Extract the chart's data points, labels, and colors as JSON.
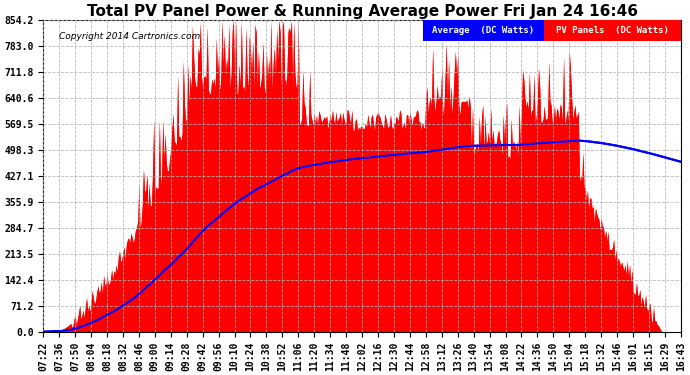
{
  "title": "Total PV Panel Power & Running Average Power Fri Jan 24 16:46",
  "copyright": "Copyright 2014 Cartronics.com",
  "legend_avg": "Average  (DC Watts)",
  "legend_pv": "PV Panels  (DC Watts)",
  "ylabel_values": [
    0.0,
    71.2,
    142.4,
    213.5,
    284.7,
    355.9,
    427.1,
    498.3,
    569.5,
    640.6,
    711.8,
    783.0,
    854.2
  ],
  "ymax": 854.2,
  "ymin": 0.0,
  "pv_color": "#ff0000",
  "avg_color": "#0000ff",
  "bg_color": "#ffffff",
  "grid_color": "#b0b0b0",
  "title_fontsize": 11,
  "tick_fontsize": 7,
  "x_tick_labels": [
    "07:22",
    "07:36",
    "07:50",
    "08:04",
    "08:18",
    "08:32",
    "08:46",
    "09:00",
    "09:14",
    "09:28",
    "09:42",
    "09:56",
    "10:10",
    "10:24",
    "10:38",
    "10:52",
    "11:06",
    "11:20",
    "11:34",
    "11:48",
    "12:02",
    "12:16",
    "12:30",
    "12:44",
    "12:58",
    "13:12",
    "13:26",
    "13:40",
    "13:54",
    "14:08",
    "14:22",
    "14:36",
    "14:50",
    "15:04",
    "15:18",
    "15:32",
    "15:46",
    "16:01",
    "16:15",
    "16:29",
    "16:43"
  ]
}
